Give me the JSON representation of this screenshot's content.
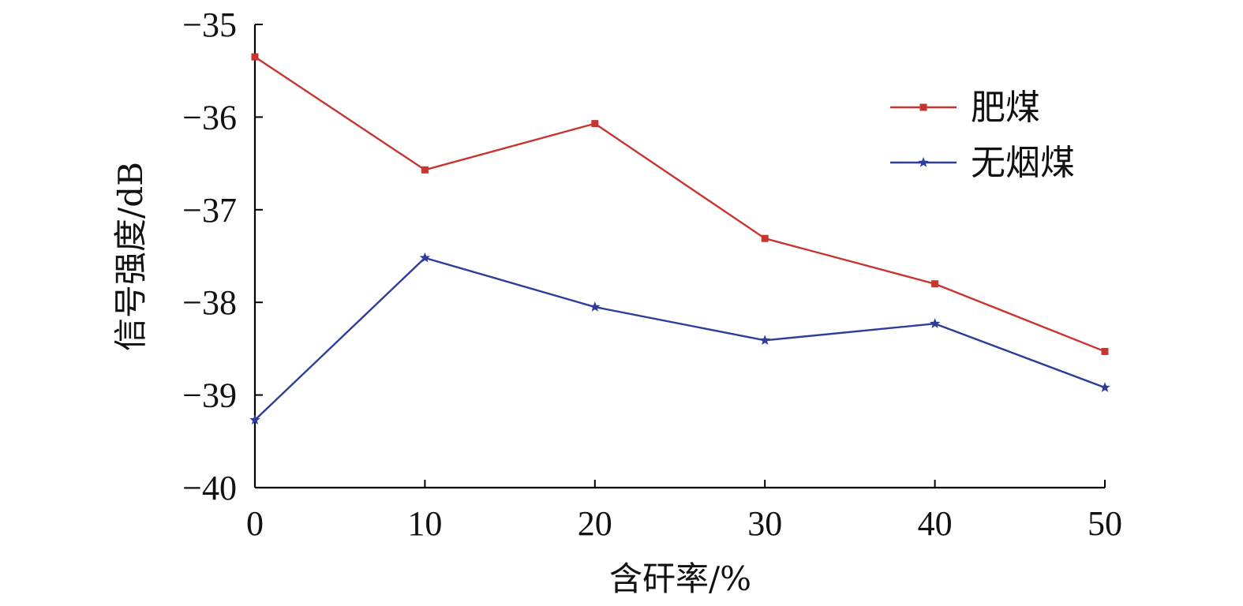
{
  "chart_data": {
    "type": "line",
    "title": "",
    "xlabel": "含矸率/%",
    "ylabel": "信号强度/dB",
    "x": [
      0,
      10,
      20,
      30,
      40,
      50
    ],
    "xlim": [
      0,
      50
    ],
    "ylim": [
      -40,
      -35
    ],
    "xticks": [
      "0",
      "10",
      "20",
      "30",
      "40",
      "50"
    ],
    "yticks": [
      "−35",
      "−36",
      "−37",
      "−38",
      "−39",
      "−40"
    ],
    "grid": false,
    "legend_position": "top-right",
    "series": [
      {
        "name": "肥煤",
        "marker": "square",
        "color": "#c8352f",
        "values": [
          -35.35,
          -36.57,
          -36.07,
          -37.31,
          -37.8,
          -38.53
        ]
      },
      {
        "name": "无烟煤",
        "marker": "star",
        "color": "#2f3d9a",
        "values": [
          -39.27,
          -37.52,
          -38.05,
          -38.41,
          -38.23,
          -38.92
        ]
      }
    ]
  }
}
